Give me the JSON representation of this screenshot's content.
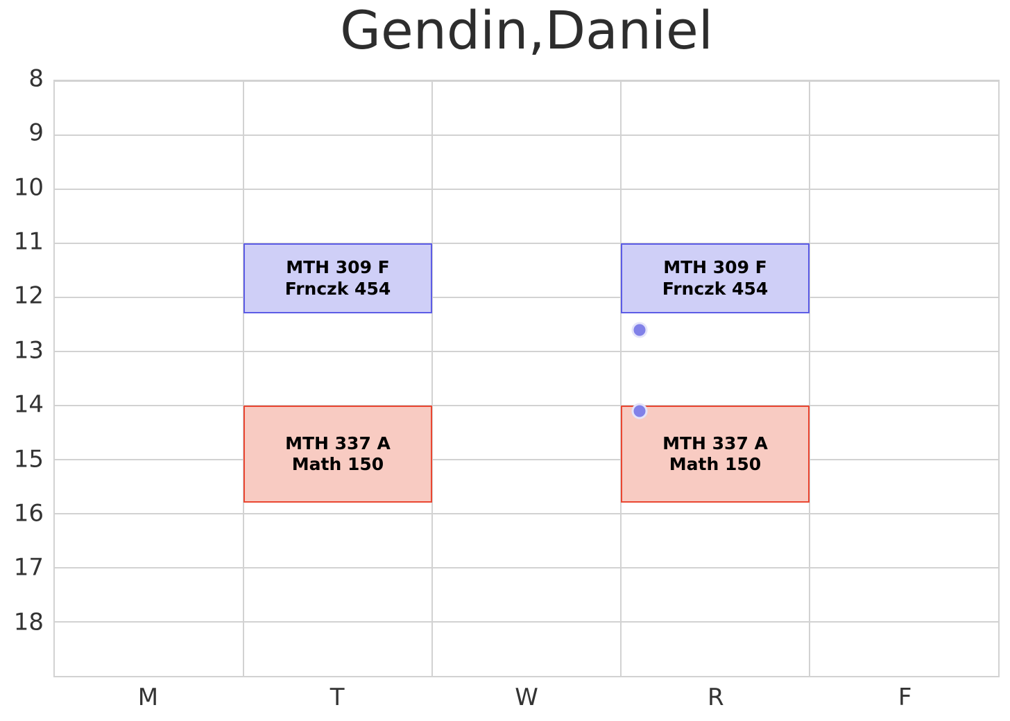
{
  "title": "Gendin,Daniel",
  "chart_data": {
    "type": "schedule",
    "title": "Gendin,Daniel",
    "x_categories": [
      "M",
      "T",
      "W",
      "R",
      "F"
    ],
    "y_ticks": [
      "8",
      "9",
      "10",
      "11",
      "12",
      "13",
      "14",
      "15",
      "16",
      "17",
      "18"
    ],
    "y_tick_values": [
      8,
      9,
      10,
      11,
      12,
      13,
      14,
      15,
      16,
      17,
      18
    ],
    "y_min": 8,
    "y_max": 19,
    "x_columns": 5,
    "grid": true,
    "legend": "none",
    "colors": {
      "grid": "#d2d2d2",
      "axis_text": "#333333",
      "title_text": "#2d2d2d",
      "block_text": "#000000",
      "blue_fill": "#cfcff7",
      "blue_border": "#5c5ce6",
      "red_fill": "#f8cbc2",
      "red_border": "#ea4631",
      "point_fill": "#8181e8",
      "point_ring": "#e4e4fa"
    },
    "blocks": [
      {
        "course": "MTH 309 F",
        "room": "Frnczk 454",
        "day": "T",
        "start": 11.0,
        "end": 12.3,
        "fill": "#cfcff7",
        "border": "#5c5ce6"
      },
      {
        "course": "MTH 309 F",
        "room": "Frnczk 454",
        "day": "R",
        "start": 11.0,
        "end": 12.3,
        "fill": "#cfcff7",
        "border": "#5c5ce6"
      },
      {
        "course": "MTH 337 A",
        "room": "Math 150",
        "day": "T",
        "start": 14.0,
        "end": 15.8,
        "fill": "#f8cbc2",
        "border": "#ea4631"
      },
      {
        "course": "MTH 337 A",
        "room": "Math 150",
        "day": "R",
        "start": 14.0,
        "end": 15.8,
        "fill": "#f8cbc2",
        "border": "#ea4631"
      }
    ],
    "points": [
      {
        "day_x": 2.6,
        "hour": 12.6
      },
      {
        "day_x": 2.6,
        "hour": 14.1
      }
    ]
  }
}
